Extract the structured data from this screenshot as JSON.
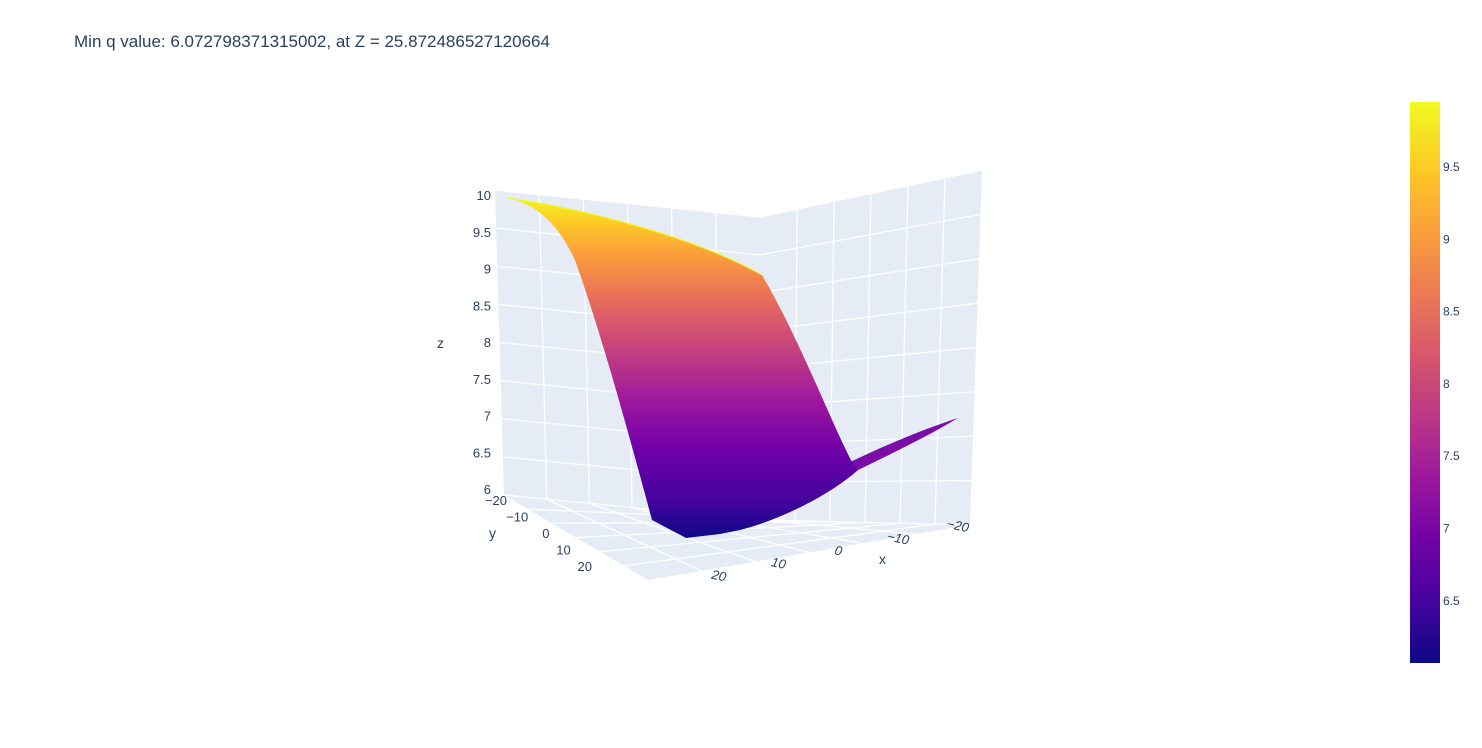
{
  "chart_data": {
    "type": "surface",
    "title": "Min q value: 6.072798371315002, at Z = 25.872486527120664",
    "axes": {
      "x": {
        "label": "x",
        "ticks": [
          "−20",
          "−10",
          "0",
          "10",
          "20"
        ],
        "range": [
          -25,
          25
        ]
      },
      "y": {
        "label": "y",
        "ticks": [
          "−20",
          "−10",
          "0",
          "10",
          "20"
        ],
        "range": [
          -25,
          25
        ]
      },
      "z": {
        "label": "z",
        "ticks": [
          "6",
          "6.5",
          "7",
          "7.5",
          "8",
          "8.5",
          "9",
          "9.5",
          "10"
        ],
        "range": [
          6,
          10
        ]
      }
    },
    "colorbar": {
      "colorscale": "Plasma",
      "min": 6.07,
      "max": 9.95,
      "ticks": [
        "6.5",
        "7",
        "7.5",
        "8",
        "8.5",
        "9",
        "9.5"
      ],
      "tick_values": [
        6.5,
        7,
        7.5,
        8,
        8.5,
        9,
        9.5
      ]
    },
    "surface": {
      "z_min": 6.072798371315002,
      "z_max": 10
    },
    "colors": {
      "plasma": [
        "#0d0887",
        "#46039f",
        "#7201a8",
        "#9c179e",
        "#bd3786",
        "#d8576b",
        "#ed7953",
        "#fb9f3a",
        "#fdca26",
        "#f0f921"
      ],
      "pane": "#e5ecf6",
      "grid": "#ffffff",
      "text": "#2a3f5f"
    }
  }
}
